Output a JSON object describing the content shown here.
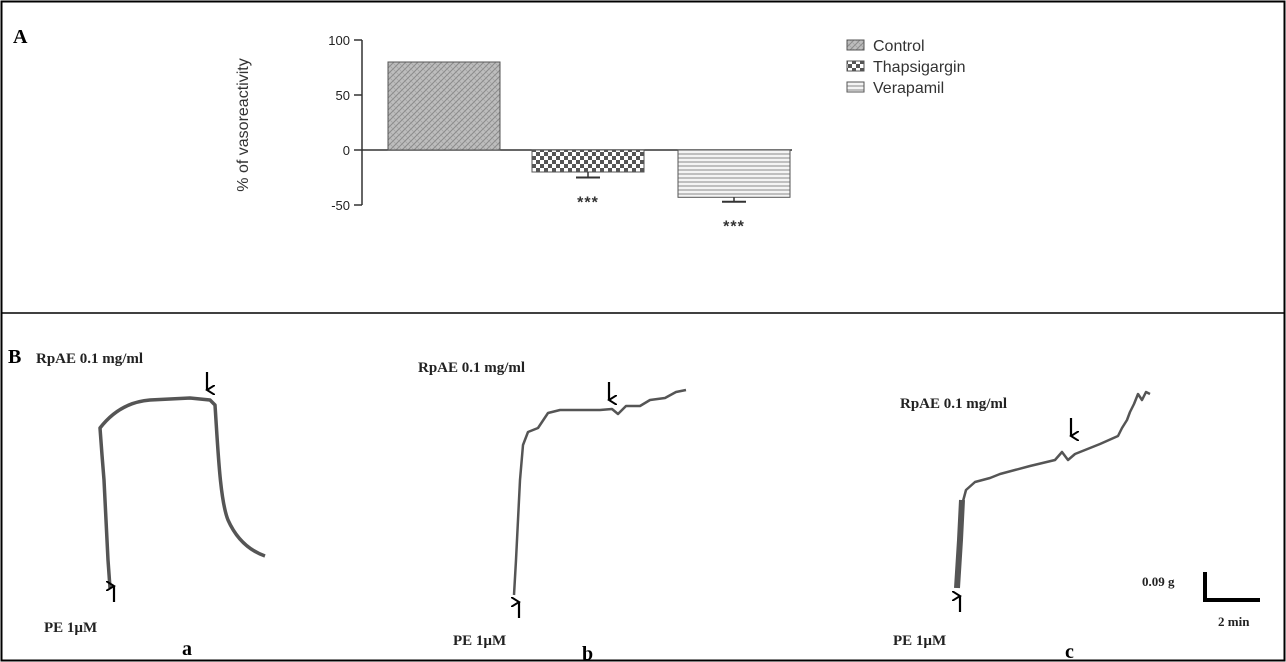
{
  "panel_a": {
    "letter": "A"
  },
  "panel_b": {
    "letter": "B"
  },
  "chart_data": [
    {
      "type": "bar",
      "categories": [
        "Control",
        "Thapsigargin",
        "Verapamil"
      ],
      "values": [
        80,
        -20,
        -43
      ],
      "errors": [
        0,
        5,
        4
      ],
      "significance": [
        "",
        "***",
        "***"
      ],
      "ylabel": "% of vasoreactivity",
      "ylim": [
        -50,
        100
      ],
      "yticks": [
        100,
        50,
        0,
        -50
      ],
      "legend": {
        "placement": "top-right",
        "entries": [
          "Control",
          "Thapsigargin",
          "Verapamil"
        ]
      },
      "grid": false
    }
  ],
  "traces": [
    {
      "id": "a",
      "letter": "a",
      "agonist_label": "PE  1µM",
      "extract_label": "RpAE 0.1 mg/ml"
    },
    {
      "id": "b",
      "letter": "b",
      "agonist_label": "PE 1µM",
      "extract_label": "RpAE 0.1 mg/ml"
    },
    {
      "id": "c",
      "letter": "c",
      "agonist_label": "PE 1µM",
      "extract_label": "RpAE 0.1 mg/ml"
    }
  ],
  "scale_bar": {
    "force": "0.09 g",
    "time": "2 min"
  },
  "colors": {
    "bar_fill": "#d6d6d6",
    "bar_stroke": "#555555",
    "trace": "#555555",
    "frame": "#000000"
  }
}
